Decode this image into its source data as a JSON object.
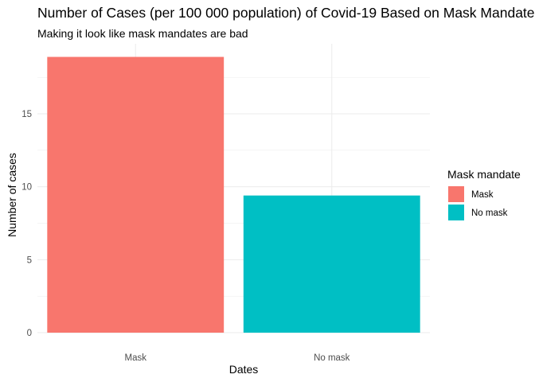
{
  "chart_data": {
    "type": "bar",
    "title": "Number of Cases (per 100 000 population) of Covid-19 Based on Mask Mandate",
    "subtitle": "Making it look like mask mandates are bad",
    "xlabel": "Dates",
    "ylabel": "Number of cases",
    "categories": [
      "Mask",
      "No mask"
    ],
    "values": [
      18.9,
      9.4
    ],
    "colors": [
      "#F8766D",
      "#00BFC4"
    ],
    "ylim": [
      0,
      19.8
    ],
    "yticks": [
      0,
      5,
      10,
      15
    ],
    "ytick_labels": [
      "0",
      "5",
      "10",
      "15"
    ],
    "grid": true,
    "legend": {
      "title": "Mask mandate",
      "position": "right",
      "entries": [
        "Mask",
        "No mask"
      ]
    }
  }
}
